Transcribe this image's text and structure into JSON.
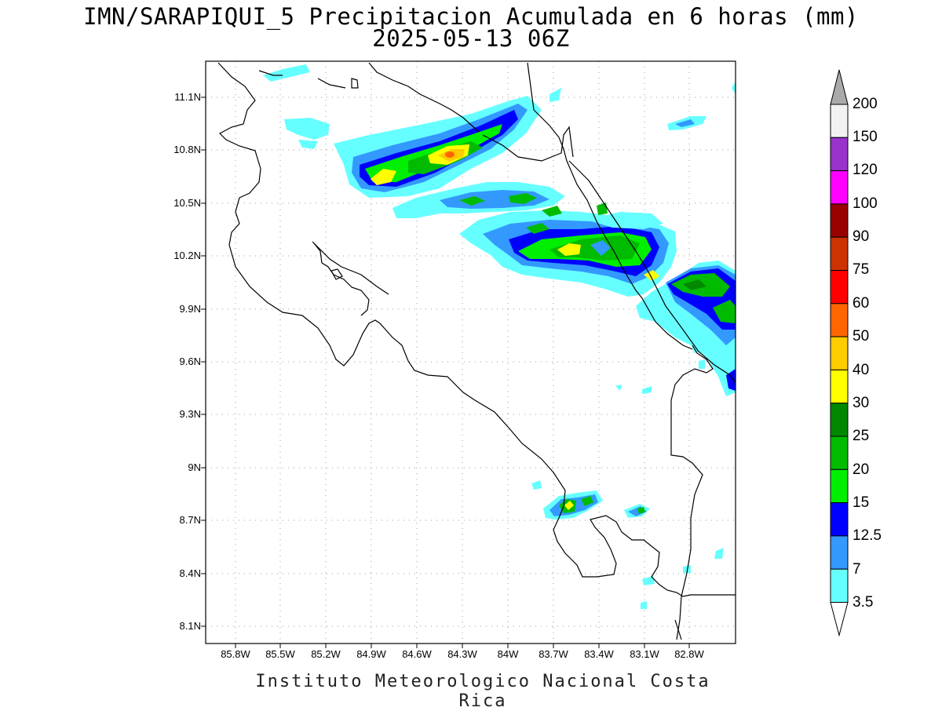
{
  "title": {
    "line1": "IMN/SARAPIQUI_5 Precipitacion Acumulada en 6 horas (mm)",
    "line2": "2025-05-13 06Z"
  },
  "footer": "Instituto Meteorologico Nacional Costa Rica",
  "lat_labels": [
    "11.1N",
    "10.8N",
    "10.5N",
    "10.2N",
    "9.9N",
    "9.6N",
    "9.3N",
    "9N",
    "8.7N",
    "8.4N",
    "8.1N"
  ],
  "lon_labels": [
    "85.8W",
    "85.5W",
    "85.2W",
    "84.9W",
    "84.6W",
    "84.3W",
    "84W",
    "83.7W",
    "83.4W",
    "83.1W",
    "82.8W"
  ],
  "legend": {
    "levels": [
      "200",
      "150",
      "120",
      "100",
      "90",
      "75",
      "60",
      "50",
      "40",
      "30",
      "25",
      "20",
      "15",
      "12.5",
      "7",
      "3.5"
    ],
    "colors": [
      "#f2f2f2",
      "#9933cc",
      "#ff00ff",
      "#990000",
      "#cc3300",
      "#ff0000",
      "#ff6600",
      "#ffcc00",
      "#ffff00",
      "#008800",
      "#00bb00",
      "#00ee00",
      "#0000ff",
      "#3399ff",
      "#66ffff"
    ],
    "cap_top": "#aaaaaa"
  },
  "colors": {
    "light_cyan": "#66ffff",
    "light_blue": "#3399ff",
    "blue": "#0000ff",
    "green": "#00ee00",
    "mid_green": "#00bb00",
    "dark_green": "#008800",
    "yellow": "#ffff00",
    "gold": "#ffcc00",
    "orange": "#ff6600"
  }
}
